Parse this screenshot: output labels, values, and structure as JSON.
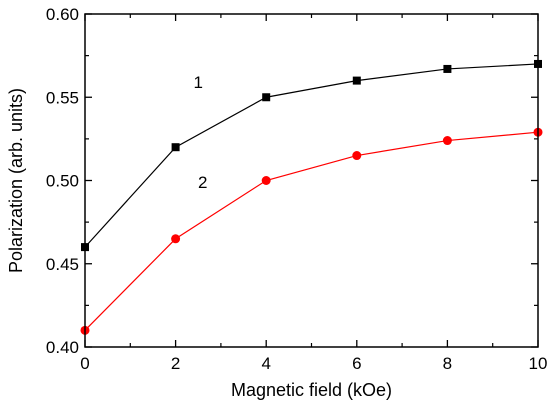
{
  "chart_data": {
    "type": "line",
    "title": "",
    "xlabel": "Magnetic field (kOe)",
    "ylabel": "Polarization (arb. units)",
    "xlim": [
      0,
      10
    ],
    "ylim": [
      0.4,
      0.6
    ],
    "xticks": [
      0,
      2,
      4,
      6,
      8,
      10
    ],
    "yticks": [
      0.4,
      0.45,
      0.5,
      0.55,
      0.6
    ],
    "xtick_labels": [
      "0",
      "2",
      "4",
      "6",
      "8",
      "10"
    ],
    "ytick_labels": [
      "0.40",
      "0.45",
      "0.50",
      "0.55",
      "0.60"
    ],
    "x": [
      0,
      2,
      4,
      6,
      8,
      10
    ],
    "series": [
      {
        "label": "1",
        "marker": "square",
        "color": "#000000",
        "values": [
          0.46,
          0.52,
          0.55,
          0.56,
          0.567,
          0.57
        ]
      },
      {
        "label": "2",
        "marker": "circle",
        "color": "#ff0000",
        "values": [
          0.41,
          0.465,
          0.5,
          0.515,
          0.524,
          0.529
        ]
      }
    ],
    "annotations": [
      {
        "text": "1",
        "x": 2.5,
        "y": 0.5555
      },
      {
        "text": "2",
        "x": 2.6,
        "y": 0.4955
      }
    ],
    "grid": false,
    "legend": "none"
  }
}
